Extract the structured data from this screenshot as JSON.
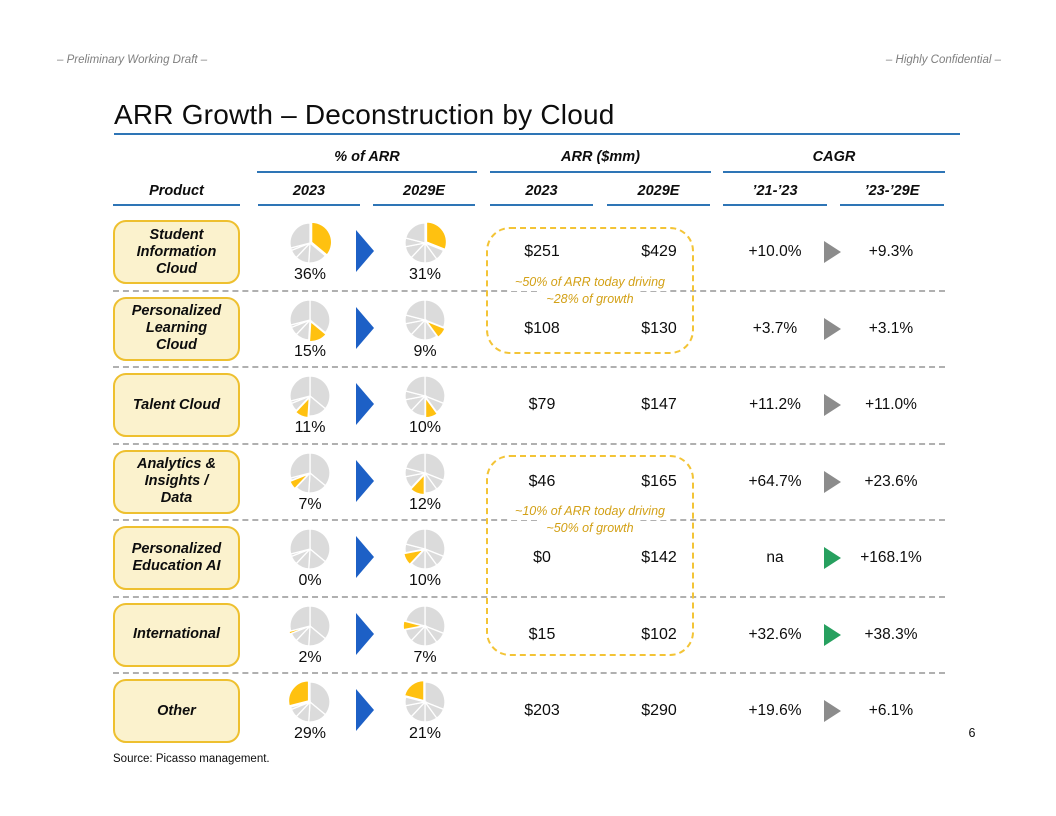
{
  "meta": {
    "left": "– Preliminary Working Draft –",
    "right": "– Highly Confidential –"
  },
  "title": "ARR Growth – Deconstruction by Cloud",
  "columns": {
    "product": "Product",
    "group_pct": "% of ARR",
    "group_arr": "ARR ($mm)",
    "group_cagr": "CAGR",
    "pct_2023": "2023",
    "pct_2029": "2029E",
    "arr_2023": "2023",
    "arr_2029": "2029E",
    "cagr_2123": "’21-’23",
    "cagr_2329": "’23-’29E"
  },
  "rows": [
    {
      "name": "Student\nInformation\nCloud",
      "pct_2023": "36%",
      "pct_2029": "31%",
      "arr_2023": "$251",
      "arr_2029": "$429",
      "cagr_2123": "+10.0%",
      "cagr_2329": "+9.3%",
      "cagr_arrow": "gray"
    },
    {
      "name": "Personalized\nLearning\nCloud",
      "pct_2023": "15%",
      "pct_2029": "9%",
      "arr_2023": "$108",
      "arr_2029": "$130",
      "cagr_2123": "+3.7%",
      "cagr_2329": "+3.1%",
      "cagr_arrow": "gray"
    },
    {
      "name": "Talent Cloud",
      "pct_2023": "11%",
      "pct_2029": "10%",
      "arr_2023": "$79",
      "arr_2029": "$147",
      "cagr_2123": "+11.2%",
      "cagr_2329": "+11.0%",
      "cagr_arrow": "gray"
    },
    {
      "name": "Analytics &\nInsights /\nData",
      "pct_2023": "7%",
      "pct_2029": "12%",
      "arr_2023": "$46",
      "arr_2029": "$165",
      "cagr_2123": "+64.7%",
      "cagr_2329": "+23.6%",
      "cagr_arrow": "gray"
    },
    {
      "name": "Personalized\nEducation AI",
      "pct_2023": "0%",
      "pct_2029": "10%",
      "arr_2023": "$0",
      "arr_2029": "$142",
      "cagr_2123": "na",
      "cagr_2329": "+168.1%",
      "cagr_arrow": "green"
    },
    {
      "name": "International",
      "pct_2023": "2%",
      "pct_2029": "7%",
      "arr_2023": "$15",
      "arr_2029": "$102",
      "cagr_2123": "+32.6%",
      "cagr_2329": "+38.3%",
      "cagr_arrow": "green"
    },
    {
      "name": "Other",
      "pct_2023": "29%",
      "pct_2029": "21%",
      "arr_2023": "$203",
      "arr_2029": "$290",
      "cagr_2123": "+19.6%",
      "cagr_2329": "+6.1%",
      "cagr_arrow": "gray"
    }
  ],
  "callouts": [
    {
      "line1": "~50% of ARR today driving",
      "line2": "~28% of growth"
    },
    {
      "line1": "~10% of ARR today driving",
      "line2": "~50% of growth"
    }
  ],
  "footer": {
    "source": "Source: Picasso management.",
    "page": "6"
  },
  "colors": {
    "accent_blue_line": "#2E75B6",
    "arrow_blue": "#1d60c6",
    "pie_yellow": "#FFC110",
    "pie_gray": "#DBDBDB",
    "box_fill": "#FBF2CD",
    "box_border": "#EEC02F",
    "callout_gold": "#F3C436",
    "gold_text": "#D3A117",
    "cagr_gray": "#8C8C8C",
    "cagr_green": "#27A05F"
  },
  "chart_data": {
    "type": "pie",
    "title": "ARR Growth – Deconstruction by Cloud",
    "description": "Per-product mini pie charts of share of total ARR (highlighted slice = that row's product), with ARR dollar values and CAGRs",
    "categories": [
      "Student Information Cloud",
      "Personalized Learning Cloud",
      "Talent Cloud",
      "Analytics & Insights / Data",
      "Personalized Education AI",
      "International",
      "Other"
    ],
    "series": [
      {
        "name": "% of ARR 2023",
        "values": [
          36,
          15,
          11,
          7,
          0,
          2,
          29
        ]
      },
      {
        "name": "% of ARR 2029E",
        "values": [
          31,
          9,
          10,
          12,
          10,
          7,
          21
        ]
      },
      {
        "name": "ARR ($mm) 2023",
        "values": [
          251,
          108,
          79,
          46,
          0,
          15,
          203
        ]
      },
      {
        "name": "ARR ($mm) 2029E",
        "values": [
          429,
          130,
          147,
          165,
          142,
          102,
          290
        ]
      },
      {
        "name": "CAGR '21-'23 (%)",
        "values": [
          10.0,
          3.7,
          11.2,
          64.7,
          null,
          32.6,
          19.6
        ]
      },
      {
        "name": "CAGR '23-'29E (%)",
        "values": [
          9.3,
          3.1,
          11.0,
          23.6,
          168.1,
          38.3,
          6.1
        ]
      }
    ],
    "legend_position": "none",
    "grid": false
  }
}
